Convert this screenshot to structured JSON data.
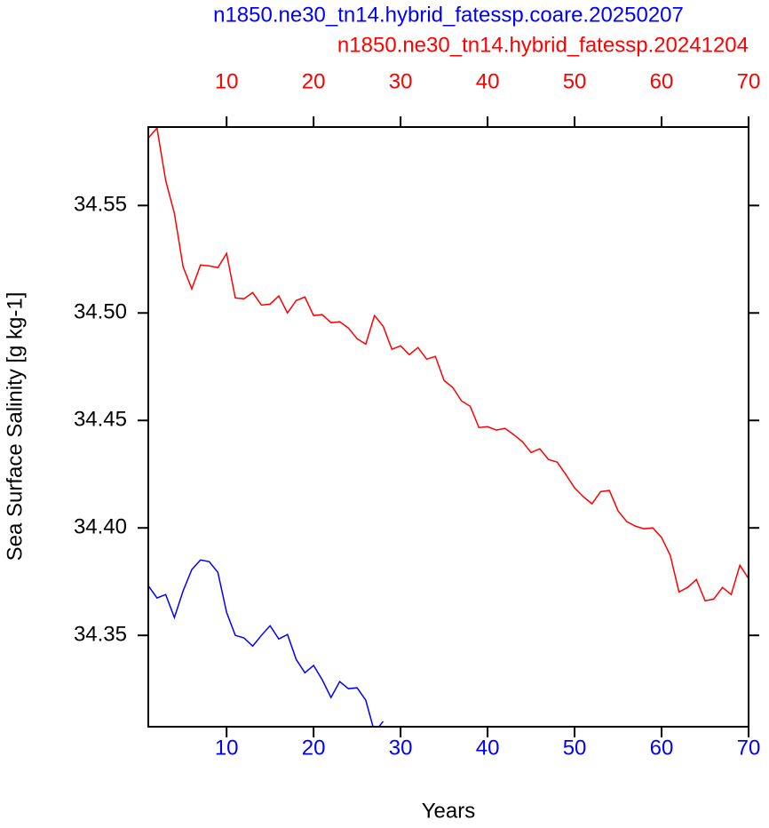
{
  "chart_data": {
    "type": "line",
    "x_label": "Years",
    "y_label": "Sea Surface Salinity [g kg-1]",
    "xlim": [
      1,
      70
    ],
    "xticks": [
      10,
      20,
      30,
      40,
      50,
      60,
      70
    ],
    "ylim": [
      34.3075,
      34.5865
    ],
    "yticks": [
      {
        "value": 34.35,
        "label": "34.35"
      },
      {
        "value": 34.4,
        "label": "34.40"
      },
      {
        "value": 34.45,
        "label": "34.45"
      },
      {
        "value": 34.5,
        "label": "34.50"
      },
      {
        "value": 34.55,
        "label": "34.55"
      }
    ],
    "series": [
      {
        "name": "n1850.ne30_tn14.hybrid_fatessp.coare.20250207",
        "color": "#0000ff",
        "x": [
          1,
          2,
          3,
          4,
          5,
          6,
          7,
          8,
          9,
          10,
          11,
          12,
          13,
          14,
          15,
          16,
          17,
          18,
          19,
          20,
          21,
          22,
          23,
          24,
          25,
          26,
          27,
          28
        ],
        "values": [
          34.3731,
          34.3674,
          34.369,
          34.3583,
          34.3707,
          34.3806,
          34.3851,
          34.3843,
          34.3793,
          34.3607,
          34.35,
          34.3488,
          34.345,
          34.35,
          34.3545,
          34.3483,
          34.3504,
          34.3388,
          34.3326,
          34.336,
          34.3293,
          34.3211,
          34.3285,
          34.3252,
          34.3256,
          34.3198,
          34.305,
          34.31
        ]
      },
      {
        "name": "n1850.ne30_tn14.hybrid_fatessp.20241204",
        "color": "#ff0000",
        "x": [
          1,
          2,
          3,
          4,
          5,
          6,
          7,
          8,
          9,
          10,
          11,
          12,
          13,
          14,
          15,
          16,
          17,
          18,
          19,
          20,
          21,
          22,
          23,
          24,
          25,
          26,
          27,
          28,
          29,
          30,
          31,
          32,
          33,
          34,
          35,
          36,
          37,
          38,
          39,
          40,
          41,
          42,
          43,
          44,
          45,
          46,
          47,
          48,
          49,
          50,
          51,
          52,
          53,
          54,
          55,
          56,
          57,
          58,
          59,
          60,
          61,
          62,
          63,
          64,
          65,
          66,
          67,
          68,
          69,
          70
        ],
        "values": [
          34.5814,
          34.586,
          34.5616,
          34.5463,
          34.5215,
          34.5112,
          34.5223,
          34.5219,
          34.5211,
          34.5277,
          34.507,
          34.5066,
          34.5095,
          34.5037,
          34.5041,
          34.5079,
          34.5,
          34.5058,
          34.5074,
          34.4988,
          34.4992,
          34.4955,
          34.4959,
          34.493,
          34.488,
          34.4855,
          34.4988,
          34.4938,
          34.4831,
          34.4847,
          34.4806,
          34.4839,
          34.4785,
          34.4798,
          34.4686,
          34.4653,
          34.4591,
          34.4566,
          34.4467,
          34.4471,
          34.4455,
          34.4463,
          34.4434,
          34.4401,
          34.4351,
          34.4368,
          34.4318,
          34.4306,
          34.4248,
          34.4186,
          34.4145,
          34.4112,
          34.4169,
          34.4174,
          34.4079,
          34.4029,
          34.4008,
          34.3996,
          34.4,
          34.3955,
          34.3872,
          34.3702,
          34.3723,
          34.376,
          34.3661,
          34.3669,
          34.3723,
          34.369,
          34.3826,
          34.3764
        ]
      }
    ]
  }
}
